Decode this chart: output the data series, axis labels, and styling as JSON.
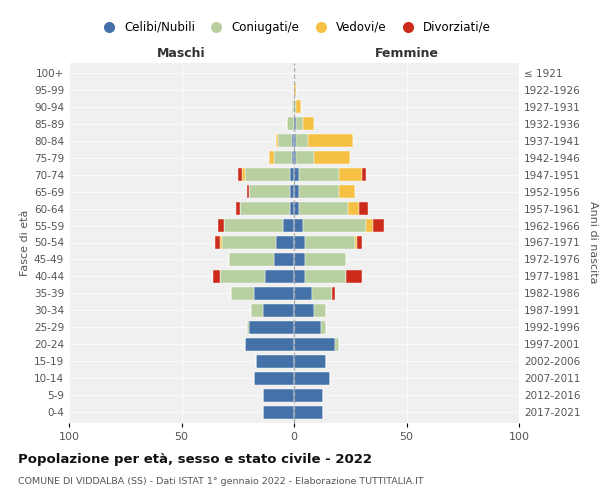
{
  "age_groups": [
    "0-4",
    "5-9",
    "10-14",
    "15-19",
    "20-24",
    "25-29",
    "30-34",
    "35-39",
    "40-44",
    "45-49",
    "50-54",
    "55-59",
    "60-64",
    "65-69",
    "70-74",
    "75-79",
    "80-84",
    "85-89",
    "90-94",
    "95-99",
    "100+"
  ],
  "birth_years": [
    "2017-2021",
    "2012-2016",
    "2007-2011",
    "2002-2006",
    "1997-2001",
    "1992-1996",
    "1987-1991",
    "1982-1986",
    "1977-1981",
    "1972-1976",
    "1967-1971",
    "1962-1966",
    "1957-1961",
    "1952-1956",
    "1947-1951",
    "1942-1946",
    "1937-1941",
    "1932-1936",
    "1927-1931",
    "1922-1926",
    "≤ 1921"
  ],
  "maschi": {
    "celibi": [
      14,
      14,
      18,
      17,
      22,
      20,
      14,
      18,
      13,
      9,
      8,
      5,
      2,
      2,
      2,
      1,
      1,
      0,
      0,
      0,
      0
    ],
    "coniugati": [
      0,
      0,
      0,
      0,
      0,
      1,
      5,
      10,
      20,
      20,
      24,
      26,
      22,
      18,
      20,
      8,
      6,
      3,
      1,
      0,
      0
    ],
    "vedovi": [
      0,
      0,
      0,
      0,
      0,
      0,
      0,
      0,
      0,
      0,
      1,
      0,
      0,
      0,
      1,
      2,
      1,
      0,
      0,
      0,
      0
    ],
    "divorziati": [
      0,
      0,
      0,
      0,
      0,
      0,
      0,
      0,
      3,
      0,
      2,
      3,
      2,
      1,
      2,
      0,
      0,
      0,
      0,
      0,
      0
    ]
  },
  "femmine": {
    "nubili": [
      13,
      13,
      16,
      14,
      18,
      12,
      9,
      8,
      5,
      5,
      5,
      4,
      2,
      2,
      2,
      1,
      1,
      1,
      0,
      0,
      0
    ],
    "coniugate": [
      0,
      0,
      0,
      0,
      2,
      2,
      5,
      9,
      18,
      18,
      22,
      28,
      22,
      18,
      18,
      8,
      5,
      3,
      1,
      0,
      0
    ],
    "vedove": [
      0,
      0,
      0,
      0,
      0,
      0,
      0,
      0,
      0,
      0,
      1,
      3,
      5,
      7,
      10,
      16,
      20,
      5,
      2,
      1,
      0
    ],
    "divorziate": [
      0,
      0,
      0,
      0,
      0,
      0,
      0,
      1,
      7,
      0,
      2,
      5,
      4,
      0,
      2,
      0,
      0,
      0,
      0,
      0,
      0
    ]
  },
  "colors": {
    "celibi_nubili": "#4472a8",
    "coniugati_e": "#b8cfa0",
    "vedovi_e": "#f5c043",
    "divorziati_e": "#cc2a1a"
  },
  "xlim": 100,
  "title": "Popolazione per età, sesso e stato civile - 2022",
  "subtitle": "COMUNE DI VIDDALBA (SS) - Dati ISTAT 1° gennaio 2022 - Elaborazione TUTTITALIA.IT",
  "ylabel_left": "Fasce di età",
  "ylabel_right": "Anni di nascita",
  "xlabel_left": "Maschi",
  "xlabel_right": "Femmine",
  "background_color": "#f0f0f0"
}
